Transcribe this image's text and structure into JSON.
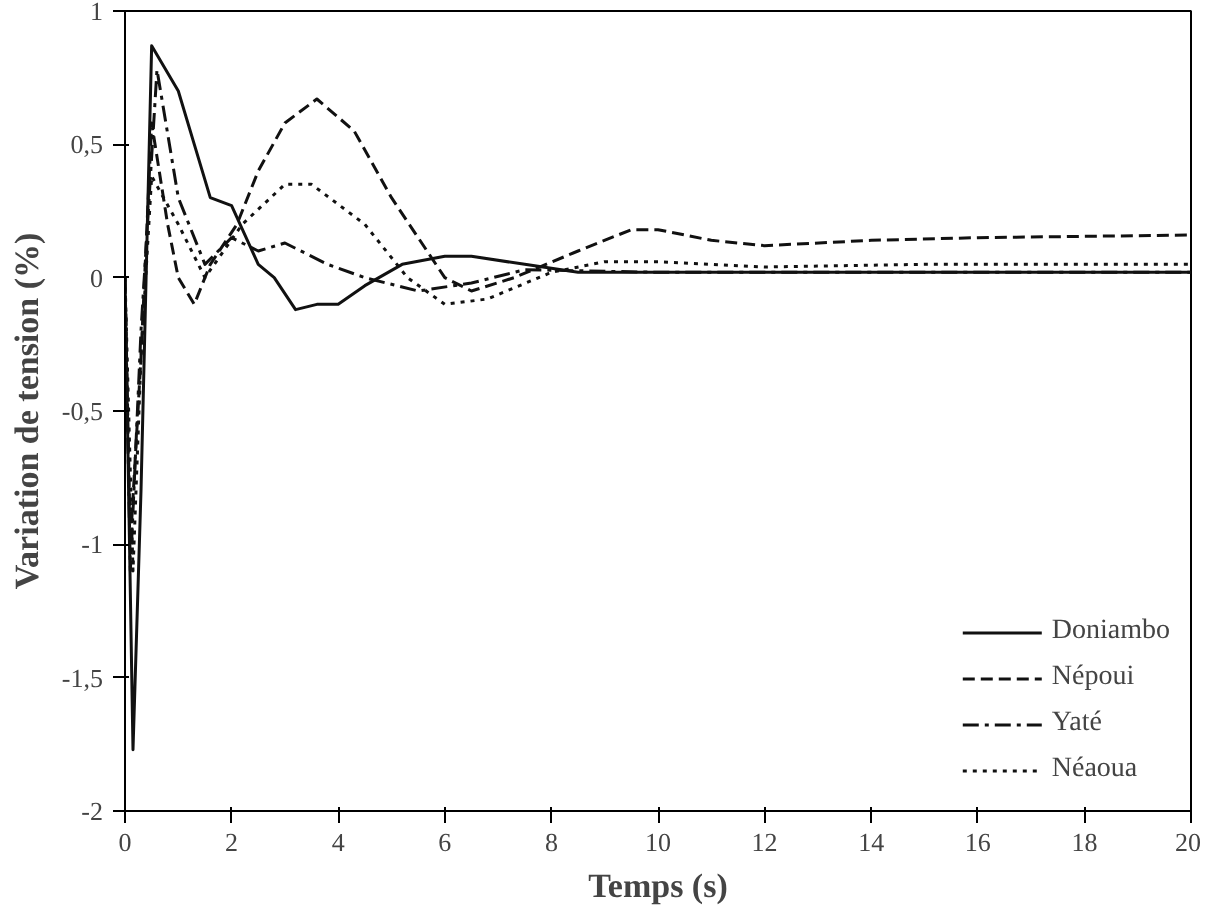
{
  "chart_data": {
    "type": "line",
    "xlabel": "Temps (s)",
    "ylabel": "Variation de tension (%)",
    "xlim": [
      0,
      20
    ],
    "ylim": [
      -2,
      1
    ],
    "xticks": [
      0,
      2,
      4,
      6,
      8,
      10,
      12,
      14,
      16,
      18,
      20
    ],
    "yticks": [
      {
        "value": -2,
        "label": "-2"
      },
      {
        "value": -1.5,
        "label": "-1,5"
      },
      {
        "value": -1,
        "label": "-1"
      },
      {
        "value": -0.5,
        "label": "-0,5"
      },
      {
        "value": 0,
        "label": "0"
      },
      {
        "value": 0.5,
        "label": "0,5"
      },
      {
        "value": 1,
        "label": "1"
      }
    ],
    "grid": false,
    "legend": "bottom right",
    "series": [
      {
        "name": "Doniambo",
        "color": "#111111",
        "line_style": "solid",
        "x": [
          0,
          0.15,
          0.3,
          0.5,
          1,
          1.3,
          1.6,
          2,
          2.5,
          2.8,
          3.2,
          3.6,
          4,
          4.5,
          5.2,
          6,
          6.5,
          7.5,
          8.5,
          10,
          12,
          15,
          20
        ],
        "values": [
          0,
          -1.77,
          -0.8,
          0.87,
          0.7,
          0.5,
          0.3,
          0.27,
          0.05,
          0,
          -0.12,
          -0.1,
          -0.1,
          -0.03,
          0.05,
          0.08,
          0.08,
          0.05,
          0.02,
          0.02,
          0.02,
          0.02,
          0.02
        ]
      },
      {
        "name": "Népoui",
        "color": "#111111",
        "line_style": "dashed",
        "x": [
          0,
          0.1,
          0.3,
          0.5,
          0.8,
          1,
          1.3,
          1.6,
          2.1,
          2.5,
          3,
          3.6,
          4.3,
          5,
          6,
          6.5,
          7.3,
          8.5,
          9.5,
          10,
          11,
          12,
          14,
          16,
          20
        ],
        "values": [
          0,
          -1,
          -0.3,
          0.58,
          0.2,
          0,
          -0.1,
          0.05,
          0.2,
          0.4,
          0.58,
          0.67,
          0.55,
          0.3,
          0,
          -0.05,
          0,
          0.1,
          0.18,
          0.18,
          0.14,
          0.12,
          0.14,
          0.15,
          0.16
        ]
      },
      {
        "name": "Yaté",
        "color": "#111111",
        "line_style": "dashdot",
        "x": [
          0,
          0.1,
          0.3,
          0.6,
          1,
          1.5,
          2,
          2.5,
          3,
          3.8,
          4.5,
          5.5,
          6.5,
          7.5,
          10,
          15,
          20
        ],
        "values": [
          0,
          -1.1,
          -0.2,
          0.78,
          0.3,
          0.05,
          0.15,
          0.1,
          0.13,
          0.05,
          0,
          -0.05,
          -0.02,
          0.03,
          0.02,
          0.02,
          0.02
        ]
      },
      {
        "name": "Néaoua",
        "color": "#111111",
        "line_style": "dotted",
        "x": [
          0,
          0.15,
          0.3,
          0.5,
          1,
          1.5,
          2.2,
          3,
          3.5,
          4.5,
          5.3,
          6,
          6.8,
          8,
          9,
          10,
          12,
          15,
          20
        ],
        "values": [
          0,
          -1.1,
          -0.3,
          0.38,
          0.2,
          0,
          0.2,
          0.35,
          0.35,
          0.2,
          0,
          -0.1,
          -0.08,
          0.02,
          0.06,
          0.06,
          0.04,
          0.05,
          0.05
        ]
      }
    ]
  }
}
